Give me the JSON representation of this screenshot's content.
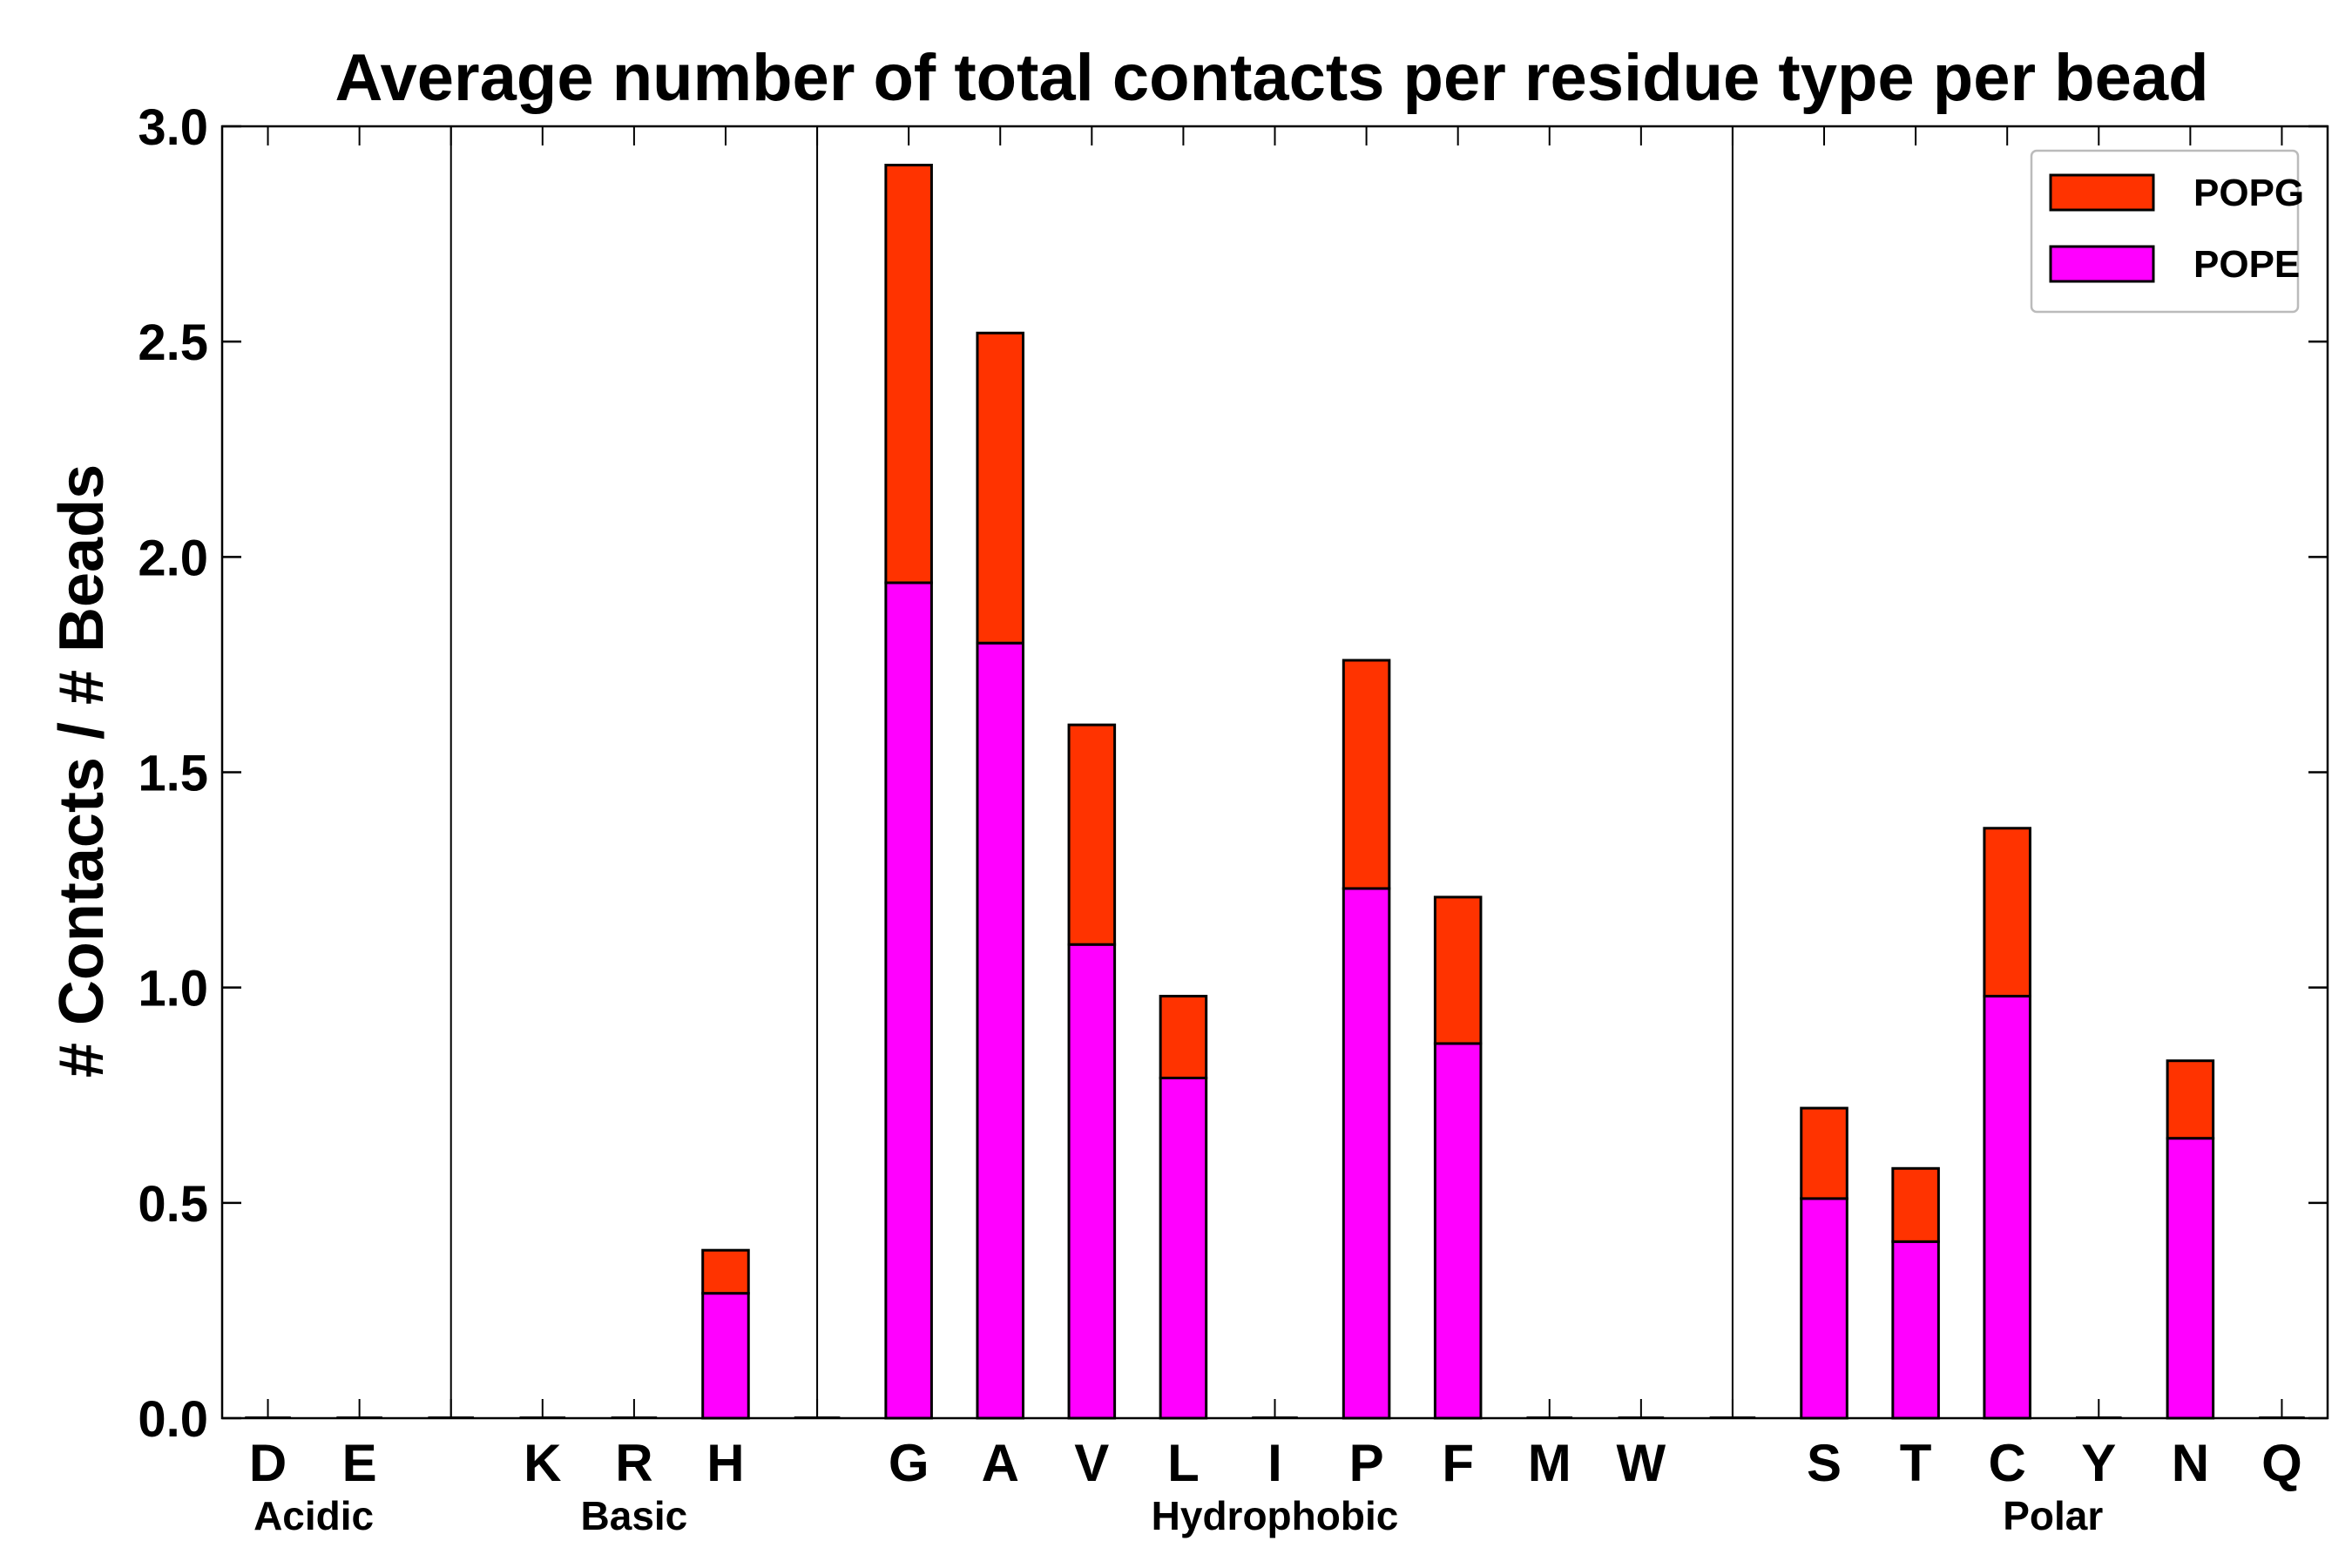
{
  "chart_data": {
    "type": "bar",
    "stacked": true,
    "title": "Average number of total contacts per residue type per bead",
    "xlabel": "",
    "ylabel": "# Contacts / # Beads",
    "ylim": [
      0,
      3.0
    ],
    "yticks": [
      "0.0",
      "0.5",
      "1.0",
      "1.5",
      "2.0",
      "2.5",
      "3.0"
    ],
    "grid": false,
    "legend_position": "top-right",
    "categories": [
      "D",
      "E",
      "",
      "K",
      "R",
      "H",
      "",
      "G",
      "A",
      "V",
      "L",
      "I",
      "P",
      "F",
      "M",
      "W",
      "",
      "S",
      "T",
      "C",
      "Y",
      "N",
      "Q"
    ],
    "groups": [
      {
        "label": "Acidic",
        "categories": [
          "D",
          "E"
        ]
      },
      {
        "label": "Basic",
        "categories": [
          "K",
          "R",
          "H"
        ]
      },
      {
        "label": "Hydrophobic",
        "categories": [
          "G",
          "A",
          "V",
          "L",
          "I",
          "P",
          "F",
          "M",
          "W"
        ]
      },
      {
        "label": "Polar",
        "categories": [
          "S",
          "T",
          "C",
          "Y",
          "N",
          "Q"
        ]
      }
    ],
    "series": [
      {
        "name": "POPE",
        "color": "#ff00ff",
        "values": [
          0,
          0,
          0,
          0,
          0,
          0.29,
          0,
          1.94,
          1.8,
          1.1,
          0.79,
          0,
          1.23,
          0.87,
          0,
          0,
          0,
          0.51,
          0.41,
          0.98,
          0,
          0.65,
          0
        ]
      },
      {
        "name": "POPG",
        "color": "#ff3300",
        "values": [
          0,
          0,
          0,
          0,
          0,
          0.1,
          0,
          0.97,
          0.72,
          0.51,
          0.19,
          0,
          0.53,
          0.34,
          0,
          0,
          0,
          0.21,
          0.17,
          0.39,
          0,
          0.18,
          0
        ]
      }
    ],
    "legend_order": [
      "POPG",
      "POPE"
    ]
  }
}
